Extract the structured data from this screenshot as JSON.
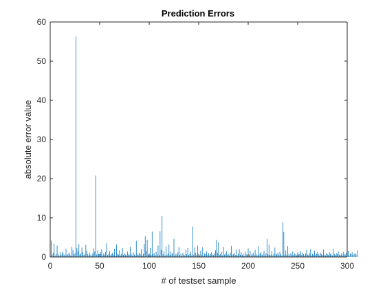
{
  "chart_data": {
    "type": "bar",
    "title": "Prediction Errors",
    "xlabel": "# of testset sample",
    "ylabel": "absolute error value",
    "xlim": [
      0,
      300
    ],
    "ylim": [
      0,
      60
    ],
    "xticks": [
      0,
      50,
      100,
      150,
      200,
      250,
      300
    ],
    "yticks": [
      0,
      10,
      20,
      30,
      40,
      50,
      60
    ],
    "grid": false,
    "series_color": "#0072BD",
    "x_start": 1,
    "values": [
      4.2,
      0.6,
      1.1,
      3.4,
      0.3,
      0.8,
      2.9,
      0.7,
      0.3,
      1.2,
      0.5,
      0.9,
      1.4,
      0.6,
      0.4,
      2.1,
      0.5,
      0.8,
      1.1,
      0.6,
      0.3,
      2.6,
      1.8,
      0.7,
      0.9,
      56.3,
      2.3,
      1.5,
      3.3,
      0.6,
      0.9,
      2.4,
      1.2,
      0.5,
      0.8,
      3.1,
      1.6,
      0.7,
      0.4,
      1.1,
      0.6,
      0.3,
      0.9,
      2.2,
      1.4,
      20.8,
      0.6,
      1.7,
      0.8,
      0.5,
      1.2,
      2.0,
      0.4,
      0.9,
      0.6,
      1.3,
      3.5,
      0.5,
      0.8,
      1.5,
      0.4,
      0.7,
      1.1,
      0.6,
      2.1,
      0.3,
      3.2,
      0.9,
      0.6,
      1.7,
      0.4,
      0.8,
      2.3,
      0.5,
      1.0,
      0.6,
      0.4,
      1.4,
      0.7,
      0.5,
      2.6,
      0.8,
      0.3,
      1.2,
      0.6,
      0.4,
      4.1,
      0.9,
      0.5,
      1.1,
      0.7,
      2.0,
      0.4,
      0.8,
      3.3,
      5.3,
      1.6,
      4.4,
      0.6,
      0.9,
      2.3,
      0.5,
      6.5,
      0.7,
      1.0,
      0.4,
      1.3,
      0.6,
      2.9,
      0.5,
      6.6,
      1.8,
      10.5,
      0.7,
      1.5,
      0.4,
      2.7,
      0.6,
      0.9,
      3.2,
      0.5,
      1.4,
      0.7,
      1.1,
      4.6,
      0.4,
      0.8,
      0.6,
      1.2,
      2.5,
      0.5,
      0.9,
      0.3,
      1.0,
      0.6,
      0.4,
      1.8,
      0.7,
      2.3,
      0.5,
      0.8,
      1.3,
      0.4,
      7.8,
      0.6,
      2.4,
      1.1,
      0.5,
      2.9,
      0.8,
      0.4,
      1.6,
      0.6,
      2.5,
      0.3,
      0.9,
      0.7,
      1.4,
      0.5,
      1.0,
      0.4,
      0.8,
      1.2,
      0.6,
      0.5,
      0.9,
      1.7,
      4.4,
      1.1,
      3.8,
      0.5,
      0.7,
      1.3,
      0.4,
      2.6,
      0.6,
      0.9,
      1.5,
      0.5,
      0.8,
      0.4,
      1.1,
      2.8,
      0.6,
      0.7,
      1.0,
      0.5,
      1.9,
      0.4,
      0.8,
      2.0,
      0.6,
      1.2,
      0.5,
      0.9,
      0.3,
      1.4,
      0.7,
      0.5,
      2.2,
      0.6,
      1.6,
      0.4,
      0.8,
      1.1,
      0.5,
      1.8,
      0.7,
      0.4,
      2.7,
      0.6,
      0.9,
      1.2,
      0.5,
      0.8,
      1.6,
      0.4,
      1.0,
      4.6,
      0.7,
      3.2,
      0.5,
      0.6,
      1.5,
      0.4,
      0.9,
      2.4,
      0.6,
      0.8,
      1.1,
      0.5,
      1.3,
      0.7,
      0.4,
      8.9,
      6.4,
      0.6,
      1.7,
      0.5,
      2.8,
      0.8,
      0.4,
      1.0,
      0.6,
      1.4,
      0.5,
      0.9,
      0.7,
      0.4,
      1.2,
      0.6,
      0.8,
      1.5,
      0.5,
      1.1,
      0.7,
      0.4,
      0.9,
      1.8,
      0.6,
      0.5,
      1.0,
      2.0,
      0.4,
      0.8,
      0.6,
      1.6,
      0.5,
      0.9,
      1.3,
      0.7,
      0.4,
      1.1,
      0.8,
      0.5,
      1.9,
      0.6,
      0.4,
      1.0,
      0.7,
      0.5,
      1.2,
      0.9,
      0.6,
      0.4,
      2.1,
      0.8,
      0.5,
      1.0,
      0.7,
      1.4,
      0.6,
      0.5,
      0.9,
      0.4,
      1.3,
      0.8,
      0.6,
      1.1,
      0.5,
      1.6,
      0.4,
      0.9,
      0.7,
      1.2,
      0.5,
      0.8,
      1.0,
      0.6,
      1.7
    ]
  }
}
